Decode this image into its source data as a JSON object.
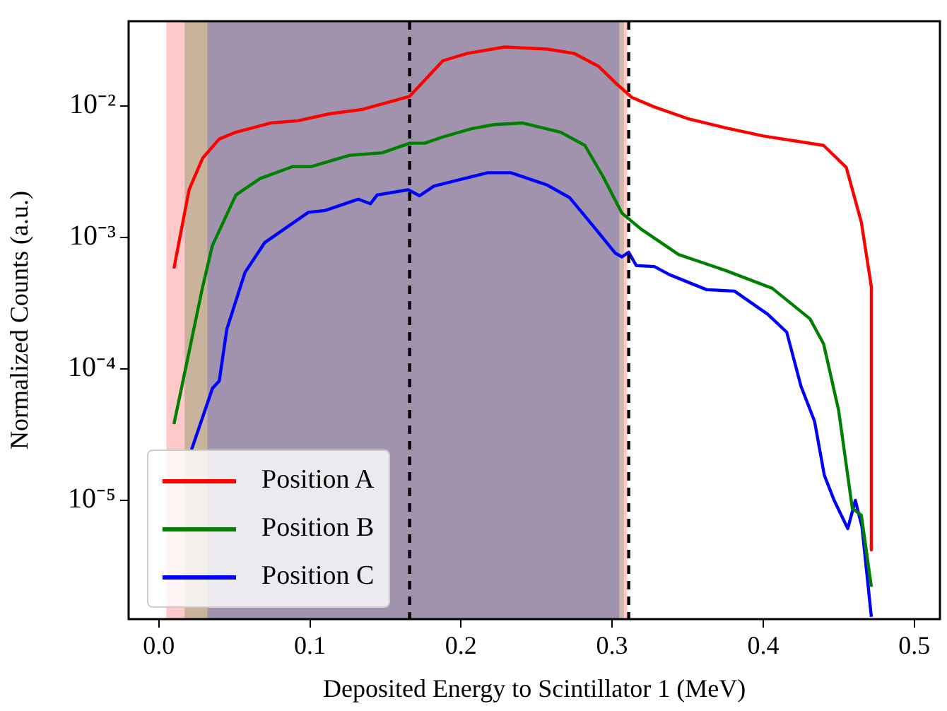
{
  "chart_data": {
    "type": "line",
    "xlabel": "Deposited Energy to Scintillator 1 (MeV)",
    "ylabel": "Normalized Counts (a.u.)",
    "log": "y",
    "xlim": [
      -0.02,
      0.517
    ],
    "xticks": [
      {
        "value": 0,
        "label": "0.0"
      },
      0.1,
      0.2,
      0.3,
      0.4,
      0.5
    ],
    "ylim": [
      1.25e-06,
      0.044
    ],
    "yticks": [
      {
        "value": 1e-05,
        "label": "10⁻⁵"
      },
      {
        "value": 0.0001,
        "label": "10⁻⁴"
      },
      {
        "value": 0.001,
        "label": "10⁻³"
      },
      {
        "value": 0.01,
        "label": "10⁻²"
      }
    ],
    "grid": false,
    "legend": "bottom left",
    "line_style": "solid",
    "marker": "none",
    "series": [
      {
        "name": "Position A",
        "color": "#ff0000",
        "x": [
          0.01,
          0.02,
          0.029,
          0.04,
          0.051,
          0.074,
          0.092,
          0.113,
          0.135,
          0.166,
          0.188,
          0.204,
          0.229,
          0.257,
          0.275,
          0.291,
          0.303,
          0.313,
          0.328,
          0.35,
          0.375,
          0.4,
          0.44,
          0.455,
          0.465,
          0.4716,
          0.4716
        ],
        "values": [
          0.00058,
          0.0023,
          0.004,
          0.0056,
          0.0063,
          0.0074,
          0.0077,
          0.0087,
          0.0094,
          0.0118,
          0.022,
          0.025,
          0.028,
          0.027,
          0.025,
          0.02,
          0.0147,
          0.0116,
          0.0098,
          0.008,
          0.0068,
          0.0059,
          0.005,
          0.0034,
          0.0013,
          0.00042,
          4.2e-06
        ]
      },
      {
        "name": "Position B",
        "color": "#008000",
        "x": [
          0.01,
          0.029,
          0.0355,
          0.051,
          0.067,
          0.0885,
          0.101,
          0.126,
          0.148,
          0.166,
          0.176,
          0.188,
          0.207,
          0.222,
          0.241,
          0.266,
          0.282,
          0.294,
          0.3065,
          0.319,
          0.344,
          0.375,
          0.406,
          0.431,
          0.44,
          0.45,
          0.459,
          0.465,
          0.4716
        ],
        "values": [
          3.8e-05,
          0.00042,
          0.00087,
          0.0021,
          0.0028,
          0.00345,
          0.00345,
          0.0042,
          0.0044,
          0.0052,
          0.0052,
          0.0058,
          0.0067,
          0.0072,
          0.0074,
          0.0063,
          0.005,
          0.0029,
          0.00153,
          0.00116,
          0.00074,
          0.00056,
          0.00041,
          0.00024,
          0.000155,
          4.8e-05,
          8.7e-06,
          7.7e-06,
          2.2e-06
        ]
      },
      {
        "name": "Position C",
        "color": "#0000ff",
        "x": [
          0.0215,
          0.0355,
          0.04,
          0.045,
          0.057,
          0.07,
          0.085,
          0.099,
          0.11,
          0.132,
          0.14,
          0.1445,
          0.165,
          0.1726,
          0.182,
          0.2006,
          0.2178,
          0.233,
          0.257,
          0.272,
          0.288,
          0.302,
          0.3065,
          0.311,
          0.316,
          0.328,
          0.338,
          0.3626,
          0.381,
          0.403,
          0.4156,
          0.425,
          0.434,
          0.4405,
          0.447,
          0.456,
          0.461,
          0.4654,
          0.4716
        ],
        "values": [
          2.4e-05,
          7.1e-05,
          8.1e-05,
          0.0002,
          0.00054,
          0.00091,
          0.0012,
          0.00155,
          0.0016,
          0.00195,
          0.0018,
          0.0021,
          0.0023,
          0.00207,
          0.00245,
          0.00277,
          0.0031,
          0.0031,
          0.0025,
          0.002,
          0.0012,
          0.00076,
          0.00071,
          0.00077,
          0.00061,
          0.0006,
          0.00052,
          0.0004,
          0.00039,
          0.00026,
          0.00019,
          7.4e-05,
          4e-05,
          1.55e-05,
          1e-05,
          6.1e-06,
          1e-05,
          6.3e-06,
          1.3e-06
        ]
      }
    ],
    "bands": [
      {
        "axis": "x",
        "from": 0.005,
        "to": 0.017,
        "color": "#ffc9c9"
      },
      {
        "axis": "x",
        "from": 0.017,
        "to": 0.032,
        "color": "#c9b39d"
      },
      {
        "axis": "x",
        "from": 0.032,
        "to": 0.305,
        "color": "#a192ad"
      },
      {
        "axis": "x",
        "from": 0.305,
        "to": 0.308,
        "color": "#d3b8a8"
      },
      {
        "axis": "x",
        "from": 0.308,
        "to": 0.31,
        "color": "#ffc9c9"
      }
    ],
    "ref_lines": [
      {
        "axis": "x",
        "value": 0.166,
        "color": "#000000",
        "line_style": "dashed"
      },
      {
        "axis": "x",
        "value": 0.311,
        "color": "#000000",
        "line_style": "dashed"
      }
    ]
  }
}
